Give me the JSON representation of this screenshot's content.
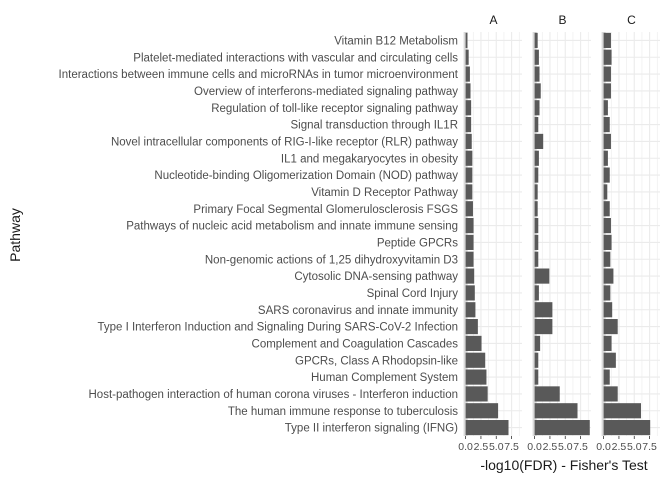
{
  "chart_data": {
    "type": "bar",
    "orientation": "horizontal",
    "title": "",
    "xlabel": "-log10(FDR) - Fisher's Test",
    "ylabel": "Pathway",
    "xlim": [
      -0.1,
      9.2
    ],
    "x_ticks": [
      0.0,
      2.5,
      5.0,
      7.5
    ],
    "x_tick_labels": [
      "0.0",
      "2.5",
      "5.0",
      "7.5"
    ],
    "grid": true,
    "bar_color": "#595959",
    "grid_color": "#ebebeb",
    "reference_line_color": "#d9d9d9",
    "categories": [
      "Type II interferon signaling (IFNG)",
      "The human immune response to tuberculosis",
      "Host-pathogen interaction of human corona viruses - Interferon induction",
      "Human Complement System",
      "GPCRs, Class A Rhodopsin-like",
      "Complement and Coagulation Cascades",
      "Type I Interferon Induction and Signaling During SARS-CoV-2 Infection",
      "SARS coronavirus and innate immunity",
      "Spinal Cord Injury",
      "Cytosolic DNA-sensing pathway",
      "Non-genomic actions of 1,25 dihydroxyvitamin D3",
      "Peptide GPCRs",
      "Pathways of nucleic acid metabolism and innate immune sensing",
      "Primary Focal Segmental Glomerulosclerosis FSGS",
      "Vitamin D Receptor Pathway",
      "Nucleotide-binding Oligomerization Domain (NOD) pathway",
      "IL1 and megakaryocytes in obesity",
      "Novel intracellular components of RIG-I-like receptor (RLR) pathway",
      "Signal transduction through IL1R",
      "Regulation of toll-like receptor signaling pathway",
      "Overview of interferons-mediated signaling pathway",
      "Interactions between immune cells and microRNAs in tumor microenvironment",
      "Platelet-mediated interactions with vascular and circulating cells",
      "Vitamin B12 Metabolism"
    ],
    "series": [
      {
        "name": "A",
        "values": [
          7.0,
          5.3,
          3.6,
          3.4,
          3.2,
          2.6,
          2.0,
          1.6,
          1.5,
          1.4,
          1.3,
          1.3,
          1.3,
          1.2,
          1.1,
          1.1,
          1.1,
          1.0,
          0.9,
          0.9,
          0.8,
          0.7,
          0.5,
          0.3
        ]
      },
      {
        "name": "B",
        "values": [
          9.0,
          7.0,
          4.1,
          0.6,
          0.6,
          0.9,
          2.9,
          2.9,
          0.7,
          2.4,
          0.6,
          0.6,
          0.6,
          0.5,
          0.5,
          0.6,
          0.7,
          1.4,
          0.6,
          0.8,
          1.0,
          0.8,
          0.7,
          0.5
        ]
      },
      {
        "name": "C",
        "values": [
          7.6,
          6.1,
          2.3,
          1.0,
          2.0,
          1.3,
          2.3,
          1.4,
          1.1,
          1.6,
          1.1,
          1.3,
          1.2,
          1.0,
          0.6,
          1.0,
          0.7,
          1.2,
          1.0,
          0.7,
          1.2,
          1.2,
          1.3,
          1.2
        ]
      }
    ]
  }
}
